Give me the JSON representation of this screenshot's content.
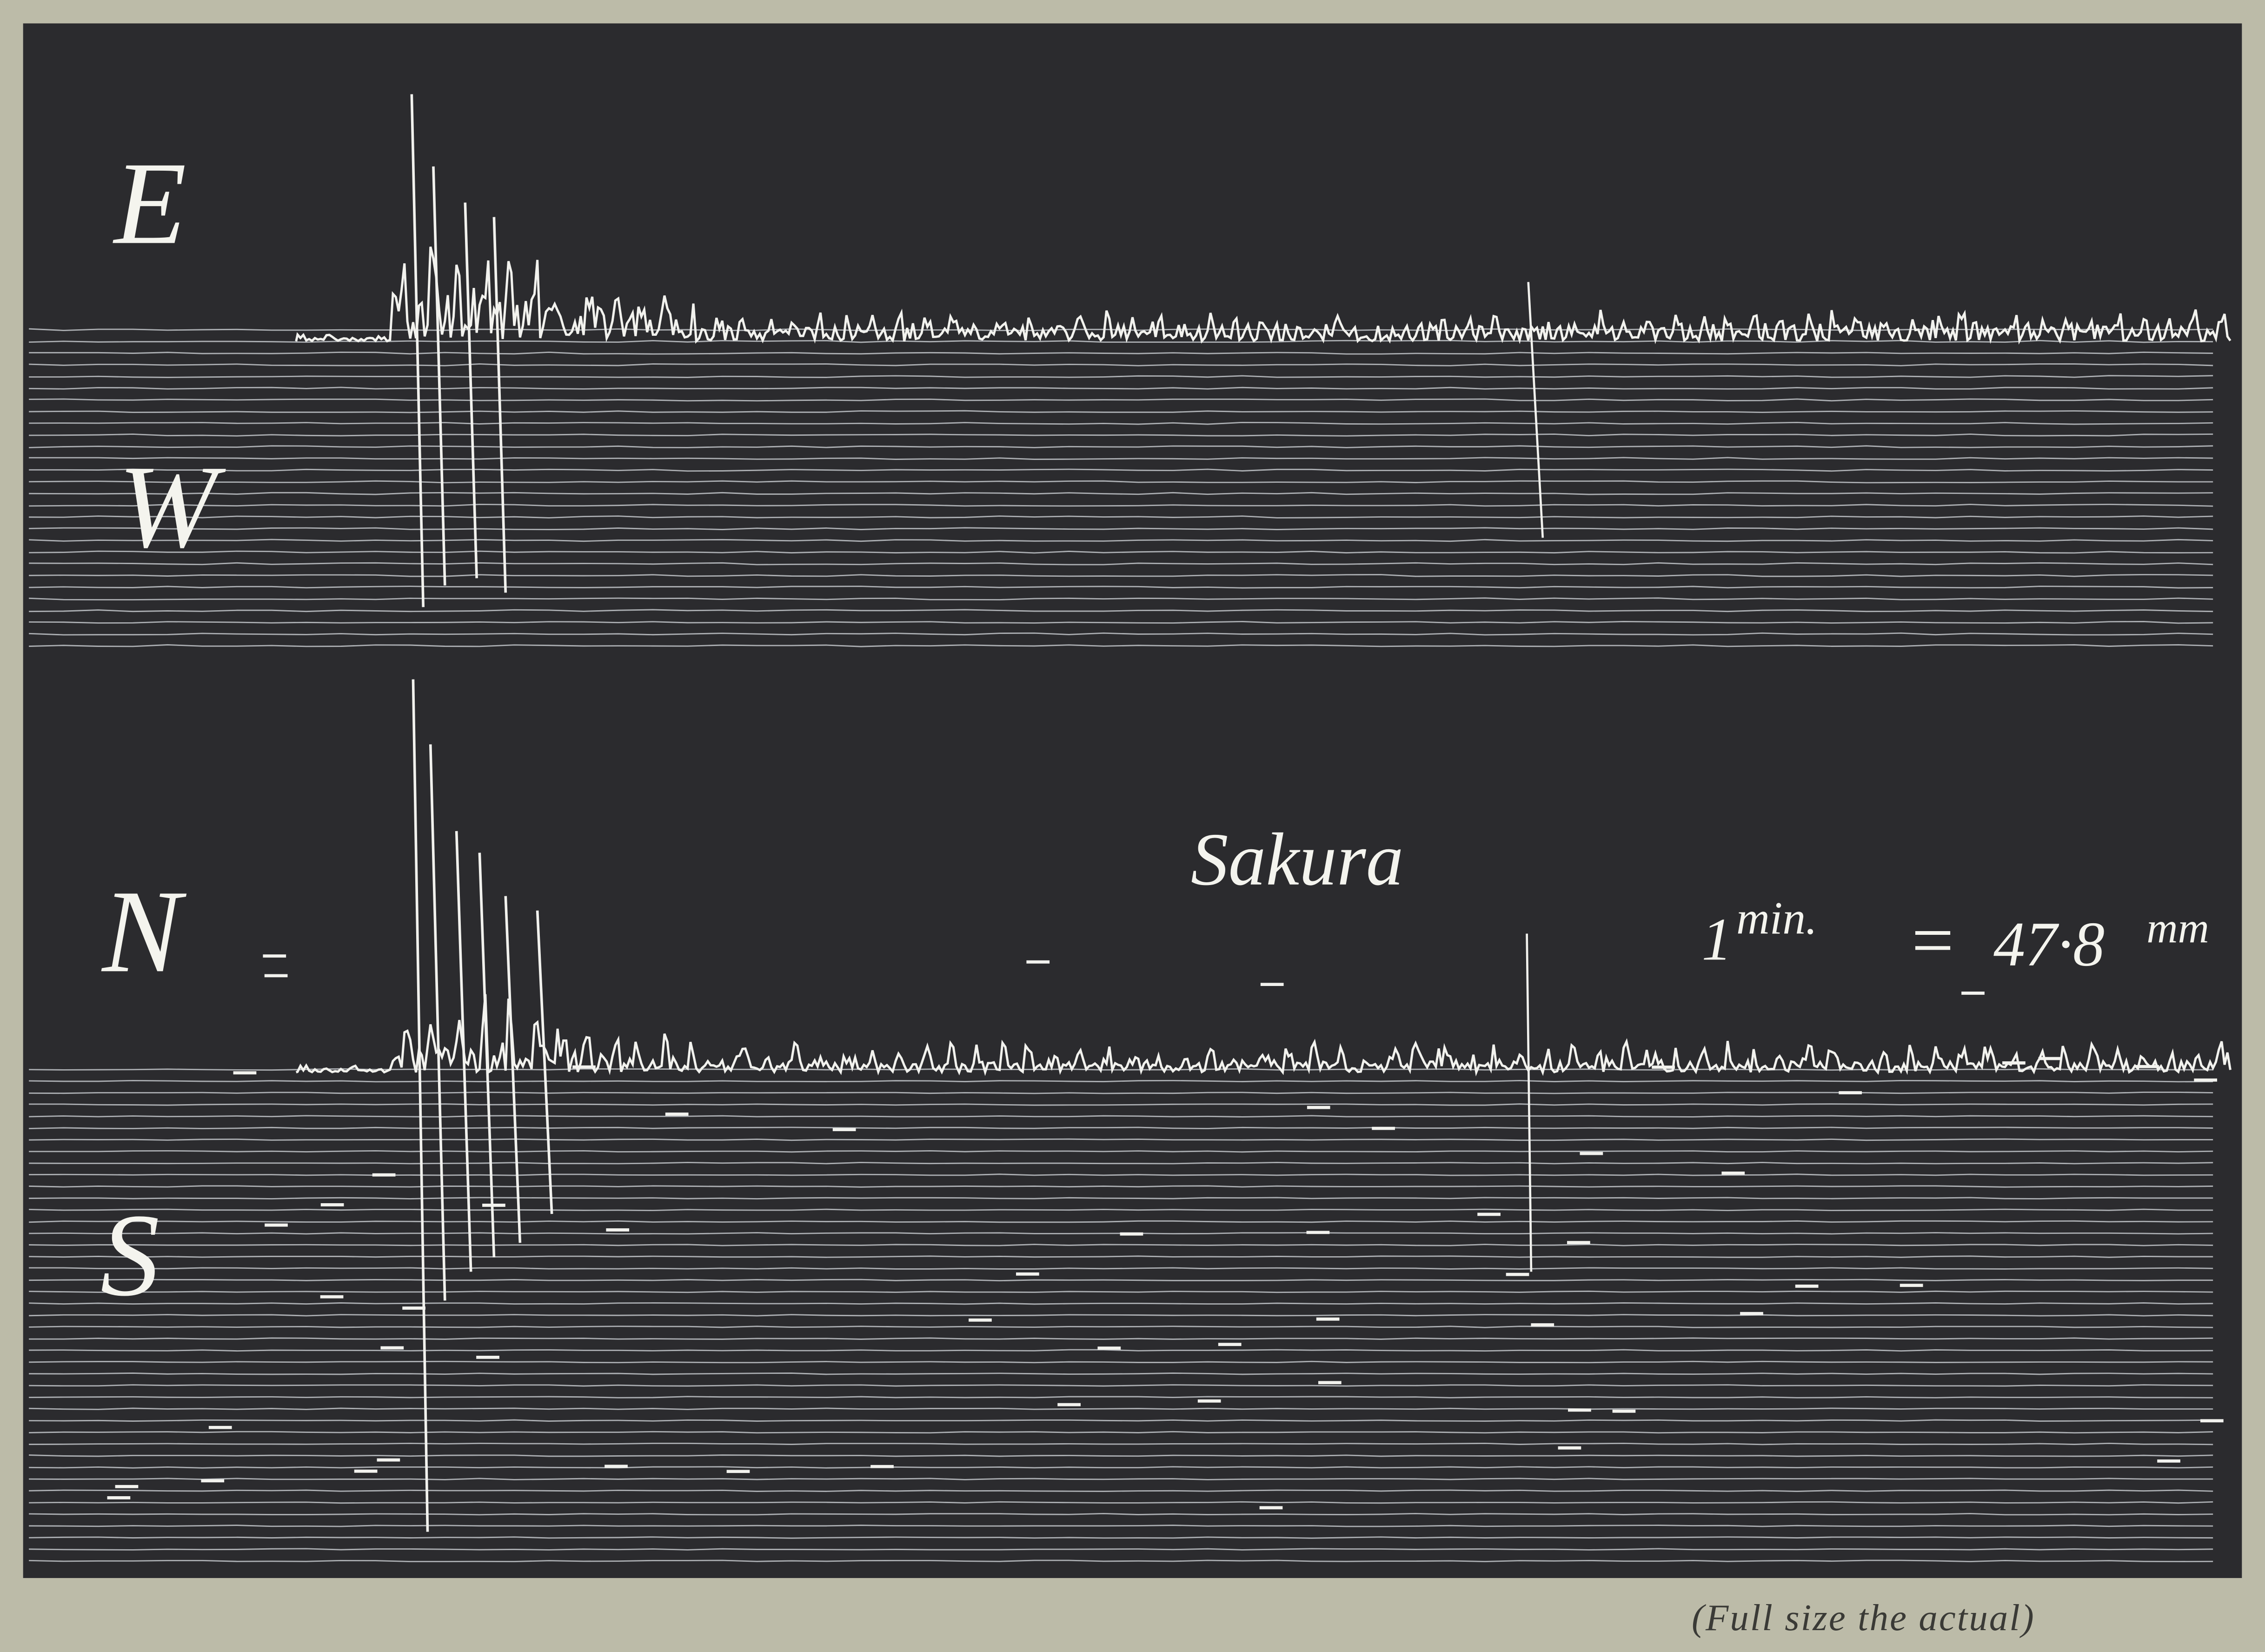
{
  "figure": {
    "component_labels": {
      "east": "E",
      "west": "W",
      "north": "N",
      "south": "S"
    },
    "station": "Sakura",
    "time_scale": {
      "amount": "1",
      "unit": "min.",
      "equals": "=",
      "length": "47·8",
      "length_unit": "mm"
    },
    "caption": "(Full size the actual)"
  }
}
